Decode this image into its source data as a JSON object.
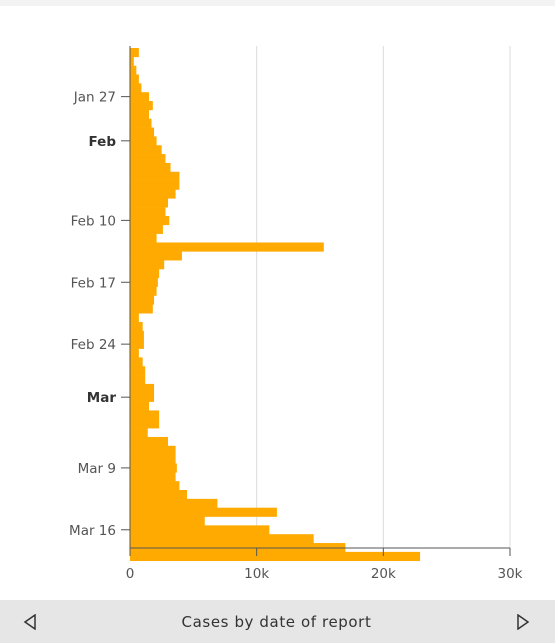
{
  "colors": {
    "bar": "#FFAA00",
    "grid": "#dcdcdc",
    "text": "#555555",
    "axis": "#555555"
  },
  "footer": {
    "label": "Cases by date of report",
    "prev_icon": "triangle-left-icon",
    "next_icon": "triangle-right-icon"
  },
  "chart_data": {
    "type": "bar",
    "orientation": "horizontal",
    "xlabel": "",
    "ylabel": "",
    "xlim": [
      0,
      30000
    ],
    "x_ticks": [
      0,
      10000,
      20000,
      30000
    ],
    "x_tick_labels": [
      "0",
      "10k",
      "20k",
      "30k"
    ],
    "y_tick_labels": [
      {
        "label": "Jan 27",
        "date": "Jan 27",
        "bold": false
      },
      {
        "label": "Feb",
        "date": "Feb 1",
        "bold": true
      },
      {
        "label": "Feb 10",
        "date": "Feb 10",
        "bold": false
      },
      {
        "label": "Feb 17",
        "date": "Feb 17",
        "bold": false
      },
      {
        "label": "Feb 24",
        "date": "Feb 24",
        "bold": false
      },
      {
        "label": "Mar",
        "date": "Mar 1",
        "bold": true
      },
      {
        "label": "Mar 9",
        "date": "Mar 9",
        "bold": false
      },
      {
        "label": "Mar 16",
        "date": "Mar 16",
        "bold": false
      }
    ],
    "grid": true,
    "categories": [
      "Jan 22",
      "Jan 23",
      "Jan 24",
      "Jan 25",
      "Jan 26",
      "Jan 27",
      "Jan 28",
      "Jan 29",
      "Jan 30",
      "Jan 31",
      "Feb 1",
      "Feb 2",
      "Feb 3",
      "Feb 4",
      "Feb 5",
      "Feb 6",
      "Feb 7",
      "Feb 8",
      "Feb 9",
      "Feb 10",
      "Feb 11",
      "Feb 12",
      "Feb 13",
      "Feb 14",
      "Feb 15",
      "Feb 16",
      "Feb 17",
      "Feb 18",
      "Feb 19",
      "Feb 20",
      "Feb 21",
      "Feb 22",
      "Feb 23",
      "Feb 24",
      "Feb 25",
      "Feb 26",
      "Feb 27",
      "Feb 28",
      "Feb 29",
      "Mar 1",
      "Mar 2",
      "Mar 3",
      "Mar 4",
      "Mar 5",
      "Mar 6",
      "Mar 7",
      "Mar 8",
      "Mar 9",
      "Mar 10",
      "Mar 11",
      "Mar 12",
      "Mar 13",
      "Mar 14",
      "Mar 15",
      "Mar 16",
      "Mar 17",
      "Mar 18",
      "Mar 19"
    ],
    "values": [
      700,
      300,
      500,
      700,
      900,
      1500,
      1800,
      1500,
      1700,
      1900,
      2100,
      2500,
      2800,
      3200,
      3900,
      3900,
      3600,
      3000,
      2800,
      3100,
      2600,
      2100,
      15300,
      4100,
      2700,
      2300,
      2200,
      2100,
      1900,
      1800,
      700,
      1000,
      1100,
      1100,
      700,
      1000,
      1200,
      1200,
      1900,
      1900,
      1500,
      2300,
      2300,
      1400,
      3000,
      3600,
      3600,
      3700,
      3600,
      3900,
      4500,
      6900,
      11600,
      5900,
      11000,
      14500,
      17000,
      22900
    ]
  }
}
